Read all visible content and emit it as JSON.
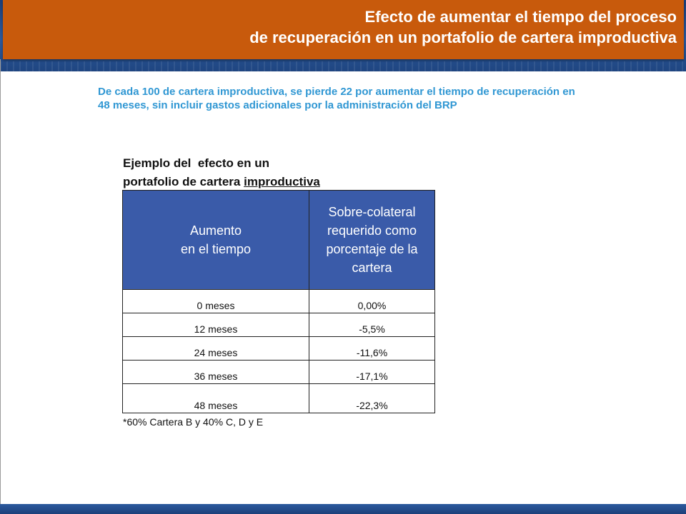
{
  "header": {
    "title_line1": "Efecto de aumentar el tiempo del proceso",
    "title_line2": "de recuperación en un portafolio de cartera improductiva",
    "colors": {
      "title_bg": "#c85a0c",
      "band": "#2c5a9e"
    }
  },
  "intro": {
    "text": "De cada 100 de cartera improductiva, se pierde 22 por aumentar el tiempo de recuperación en 48 meses, sin incluir gastos adicionales por la administración del BRP",
    "color": "#3097d3"
  },
  "example": {
    "title_line1": "Ejemplo del  efecto en un",
    "title_line2_prefix": "portafolio de cartera ",
    "title_line2_underlined": "improductiva"
  },
  "table": {
    "header_bg": "#3a5ba9",
    "headers": [
      {
        "line1": "Aumento",
        "line2": "en el tiempo"
      },
      {
        "text": "Sobre-colateral requerido como porcentaje de la cartera"
      }
    ],
    "rows": [
      {
        "time": "0 meses",
        "value": "0,00%"
      },
      {
        "time": "12 meses",
        "value": "-5,5%"
      },
      {
        "time": "24 meses",
        "value": "-11,6%"
      },
      {
        "time": "36 meses",
        "value": "-17,1%"
      },
      {
        "time": "48 meses",
        "value": "-22,3%"
      }
    ]
  },
  "footnote": "*60% Cartera B y 40% C, D y E"
}
